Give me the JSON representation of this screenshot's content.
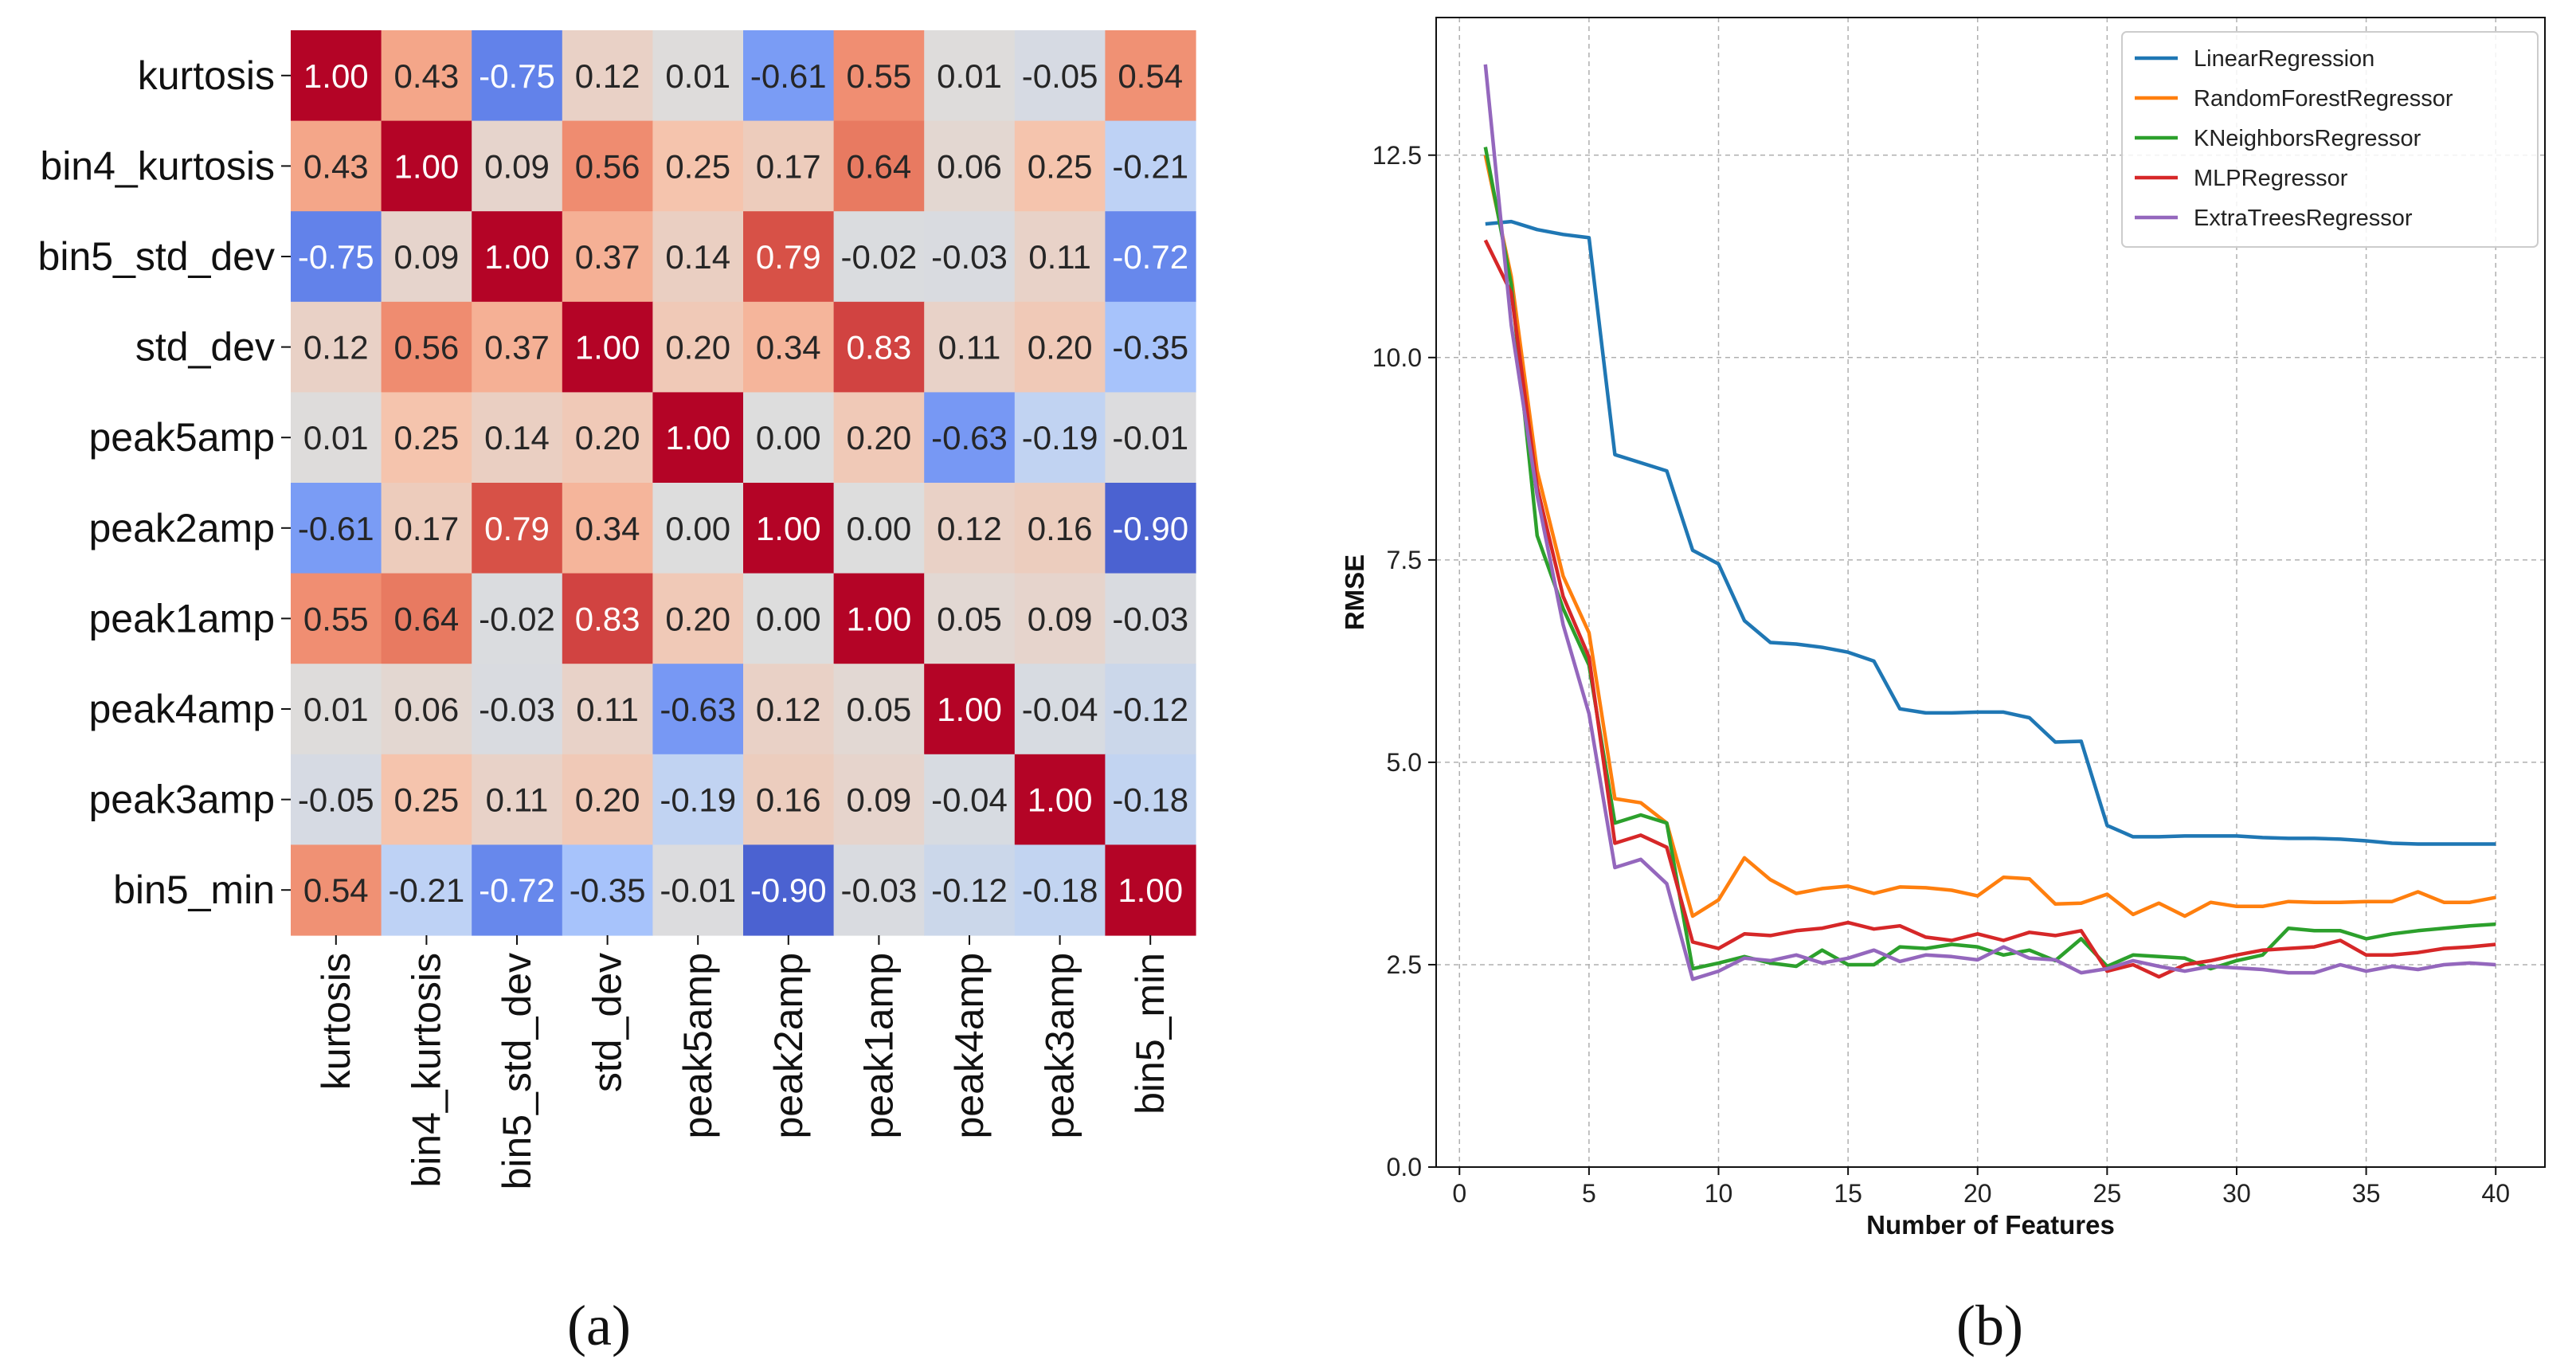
{
  "panels": {
    "a": "(a)",
    "b": "(b)"
  },
  "chart_data": [
    {
      "type": "heatmap",
      "features": [
        "kurtosis",
        "bin4_kurtosis",
        "bin5_std_dev",
        "std_dev",
        "peak5amp",
        "peak2amp",
        "peak1amp",
        "peak4amp",
        "peak3amp",
        "bin5_min"
      ],
      "matrix": [
        [
          1.0,
          0.43,
          -0.75,
          0.12,
          0.01,
          -0.61,
          0.55,
          0.01,
          -0.05,
          0.54
        ],
        [
          0.43,
          1.0,
          0.09,
          0.56,
          0.25,
          0.17,
          0.64,
          0.06,
          0.25,
          -0.21
        ],
        [
          -0.75,
          0.09,
          1.0,
          0.37,
          0.14,
          0.79,
          -0.02,
          -0.03,
          0.11,
          -0.72
        ],
        [
          0.12,
          0.56,
          0.37,
          1.0,
          0.2,
          0.34,
          0.83,
          0.11,
          0.2,
          -0.35
        ],
        [
          0.01,
          0.25,
          0.14,
          0.2,
          1.0,
          0.0,
          0.2,
          -0.63,
          -0.19,
          -0.01
        ],
        [
          -0.61,
          0.17,
          0.79,
          0.34,
          0.0,
          1.0,
          0.0,
          0.12,
          0.16,
          -0.9
        ],
        [
          0.55,
          0.64,
          -0.02,
          0.83,
          0.2,
          0.0,
          1.0,
          0.05,
          0.09,
          -0.03
        ],
        [
          0.01,
          0.06,
          -0.03,
          0.11,
          -0.63,
          0.12,
          0.05,
          1.0,
          -0.04,
          -0.12
        ],
        [
          -0.05,
          0.25,
          0.11,
          0.2,
          -0.19,
          0.16,
          0.09,
          -0.04,
          1.0,
          -0.18
        ],
        [
          0.54,
          -0.21,
          -0.72,
          -0.35,
          -0.01,
          -0.9,
          -0.03,
          -0.12,
          -0.18,
          1.0
        ]
      ],
      "colormap": "coolwarm",
      "vmin": -1,
      "vmax": 1
    },
    {
      "type": "line",
      "xlabel": "Number of Features",
      "ylabel": "RMSE",
      "xlim": [
        -0.9,
        41.9
      ],
      "ylim": [
        0,
        14.2
      ],
      "xticks": [
        0,
        5,
        10,
        15,
        20,
        25,
        30,
        35,
        40
      ],
      "yticks": [
        0.0,
        2.5,
        5.0,
        7.5,
        10.0,
        12.5
      ],
      "grid": true,
      "legend_position": "top-right",
      "x": [
        1,
        2,
        3,
        4,
        5,
        6,
        7,
        8,
        9,
        10,
        11,
        12,
        13,
        14,
        15,
        16,
        17,
        18,
        19,
        20,
        21,
        22,
        23,
        24,
        25,
        26,
        27,
        28,
        29,
        30,
        31,
        32,
        33,
        34,
        35,
        36,
        37,
        38,
        39,
        40
      ],
      "series": [
        {
          "name": "LinearRegression",
          "color": "#1f77b4",
          "values": [
            11.65,
            11.68,
            11.58,
            11.52,
            11.48,
            8.8,
            8.7,
            8.6,
            7.62,
            7.45,
            6.75,
            6.48,
            6.46,
            6.42,
            6.36,
            6.25,
            5.66,
            5.61,
            5.61,
            5.62,
            5.62,
            5.55,
            5.25,
            5.26,
            4.22,
            4.08,
            4.08,
            4.09,
            4.09,
            4.09,
            4.07,
            4.06,
            4.06,
            4.05,
            4.03,
            4.0,
            3.99,
            3.99,
            3.99,
            3.99
          ]
        },
        {
          "name": "RandomForestRegressor",
          "color": "#ff7f0e",
          "values": [
            12.5,
            11.0,
            8.6,
            7.3,
            6.6,
            4.55,
            4.5,
            4.25,
            3.1,
            3.3,
            3.82,
            3.55,
            3.38,
            3.44,
            3.47,
            3.38,
            3.46,
            3.45,
            3.42,
            3.35,
            3.58,
            3.56,
            3.25,
            3.26,
            3.37,
            3.12,
            3.26,
            3.1,
            3.27,
            3.22,
            3.22,
            3.28,
            3.27,
            3.27,
            3.28,
            3.28,
            3.4,
            3.27,
            3.27,
            3.33
          ]
        },
        {
          "name": "KNeighborsRegressor",
          "color": "#2ca02c",
          "values": [
            12.6,
            10.9,
            7.8,
            6.9,
            6.2,
            4.25,
            4.35,
            4.25,
            2.45,
            2.52,
            2.6,
            2.52,
            2.48,
            2.68,
            2.5,
            2.5,
            2.72,
            2.7,
            2.75,
            2.72,
            2.62,
            2.68,
            2.55,
            2.82,
            2.48,
            2.62,
            2.6,
            2.58,
            2.45,
            2.55,
            2.62,
            2.95,
            2.92,
            2.92,
            2.82,
            2.88,
            2.92,
            2.95,
            2.98,
            3.0
          ]
        },
        {
          "name": "MLPRegressor",
          "color": "#d62728",
          "values": [
            11.45,
            10.8,
            8.4,
            7.05,
            6.3,
            4.0,
            4.1,
            3.95,
            2.78,
            2.7,
            2.88,
            2.86,
            2.92,
            2.95,
            3.02,
            2.94,
            2.98,
            2.84,
            2.8,
            2.88,
            2.8,
            2.9,
            2.86,
            2.92,
            2.42,
            2.5,
            2.35,
            2.5,
            2.55,
            2.62,
            2.68,
            2.7,
            2.72,
            2.8,
            2.62,
            2.62,
            2.65,
            2.7,
            2.72,
            2.75
          ]
        },
        {
          "name": "ExtraTreesRegressor",
          "color": "#9467bd",
          "values": [
            13.62,
            10.4,
            8.3,
            6.7,
            5.6,
            3.7,
            3.8,
            3.5,
            2.32,
            2.42,
            2.58,
            2.55,
            2.62,
            2.52,
            2.58,
            2.68,
            2.54,
            2.62,
            2.6,
            2.56,
            2.72,
            2.58,
            2.56,
            2.4,
            2.45,
            2.55,
            2.48,
            2.42,
            2.48,
            2.46,
            2.44,
            2.4,
            2.4,
            2.5,
            2.42,
            2.48,
            2.44,
            2.5,
            2.52,
            2.5
          ]
        }
      ]
    }
  ]
}
